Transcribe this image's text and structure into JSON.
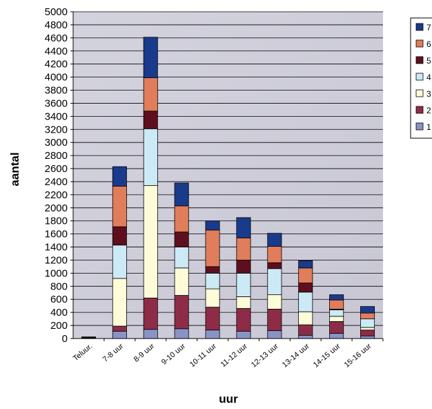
{
  "chart_data": {
    "type": "bar",
    "stacked": true,
    "xlabel": "uur",
    "ylabel": "aantal",
    "ylim": [
      0,
      5000
    ],
    "ytick_step": 200,
    "grid": true,
    "legend_position": "right",
    "categories": [
      "Teluur.",
      "7-8 uur",
      "8-9 uur",
      "9-10 uur",
      "10-11 uur",
      "11-12 uur",
      "12-13 uur",
      "13-14 uur",
      "14-15 uur",
      "15-16 uur"
    ],
    "series": [
      {
        "name": "1",
        "color": "#8a93c6",
        "values": [
          10,
          110,
          140,
          150,
          130,
          110,
          120,
          50,
          80,
          40
        ]
      },
      {
        "name": "2",
        "color": "#8e2c48",
        "values": [
          5,
          80,
          480,
          510,
          350,
          350,
          330,
          160,
          180,
          90
        ]
      },
      {
        "name": "3",
        "color": "#fdfbd8",
        "values": [
          5,
          730,
          1720,
          420,
          280,
          180,
          220,
          200,
          80,
          40
        ]
      },
      {
        "name": "4",
        "color": "#cbeaf6",
        "values": [
          0,
          510,
          870,
          320,
          240,
          360,
          400,
          300,
          100,
          130
        ]
      },
      {
        "name": "5",
        "color": "#5e0f1e",
        "values": [
          0,
          280,
          270,
          230,
          100,
          200,
          90,
          140,
          10,
          0
        ]
      },
      {
        "name": "6",
        "color": "#e07d5b",
        "values": [
          0,
          620,
          510,
          400,
          560,
          340,
          250,
          230,
          140,
          90
        ]
      },
      {
        "name": "7",
        "color": "#1a3a8c",
        "values": [
          5,
          300,
          620,
          350,
          140,
          310,
          200,
          110,
          80,
          100
        ]
      }
    ],
    "legend_entries": [
      "7",
      "6",
      "5",
      "4",
      "3",
      "2",
      "1"
    ]
  }
}
